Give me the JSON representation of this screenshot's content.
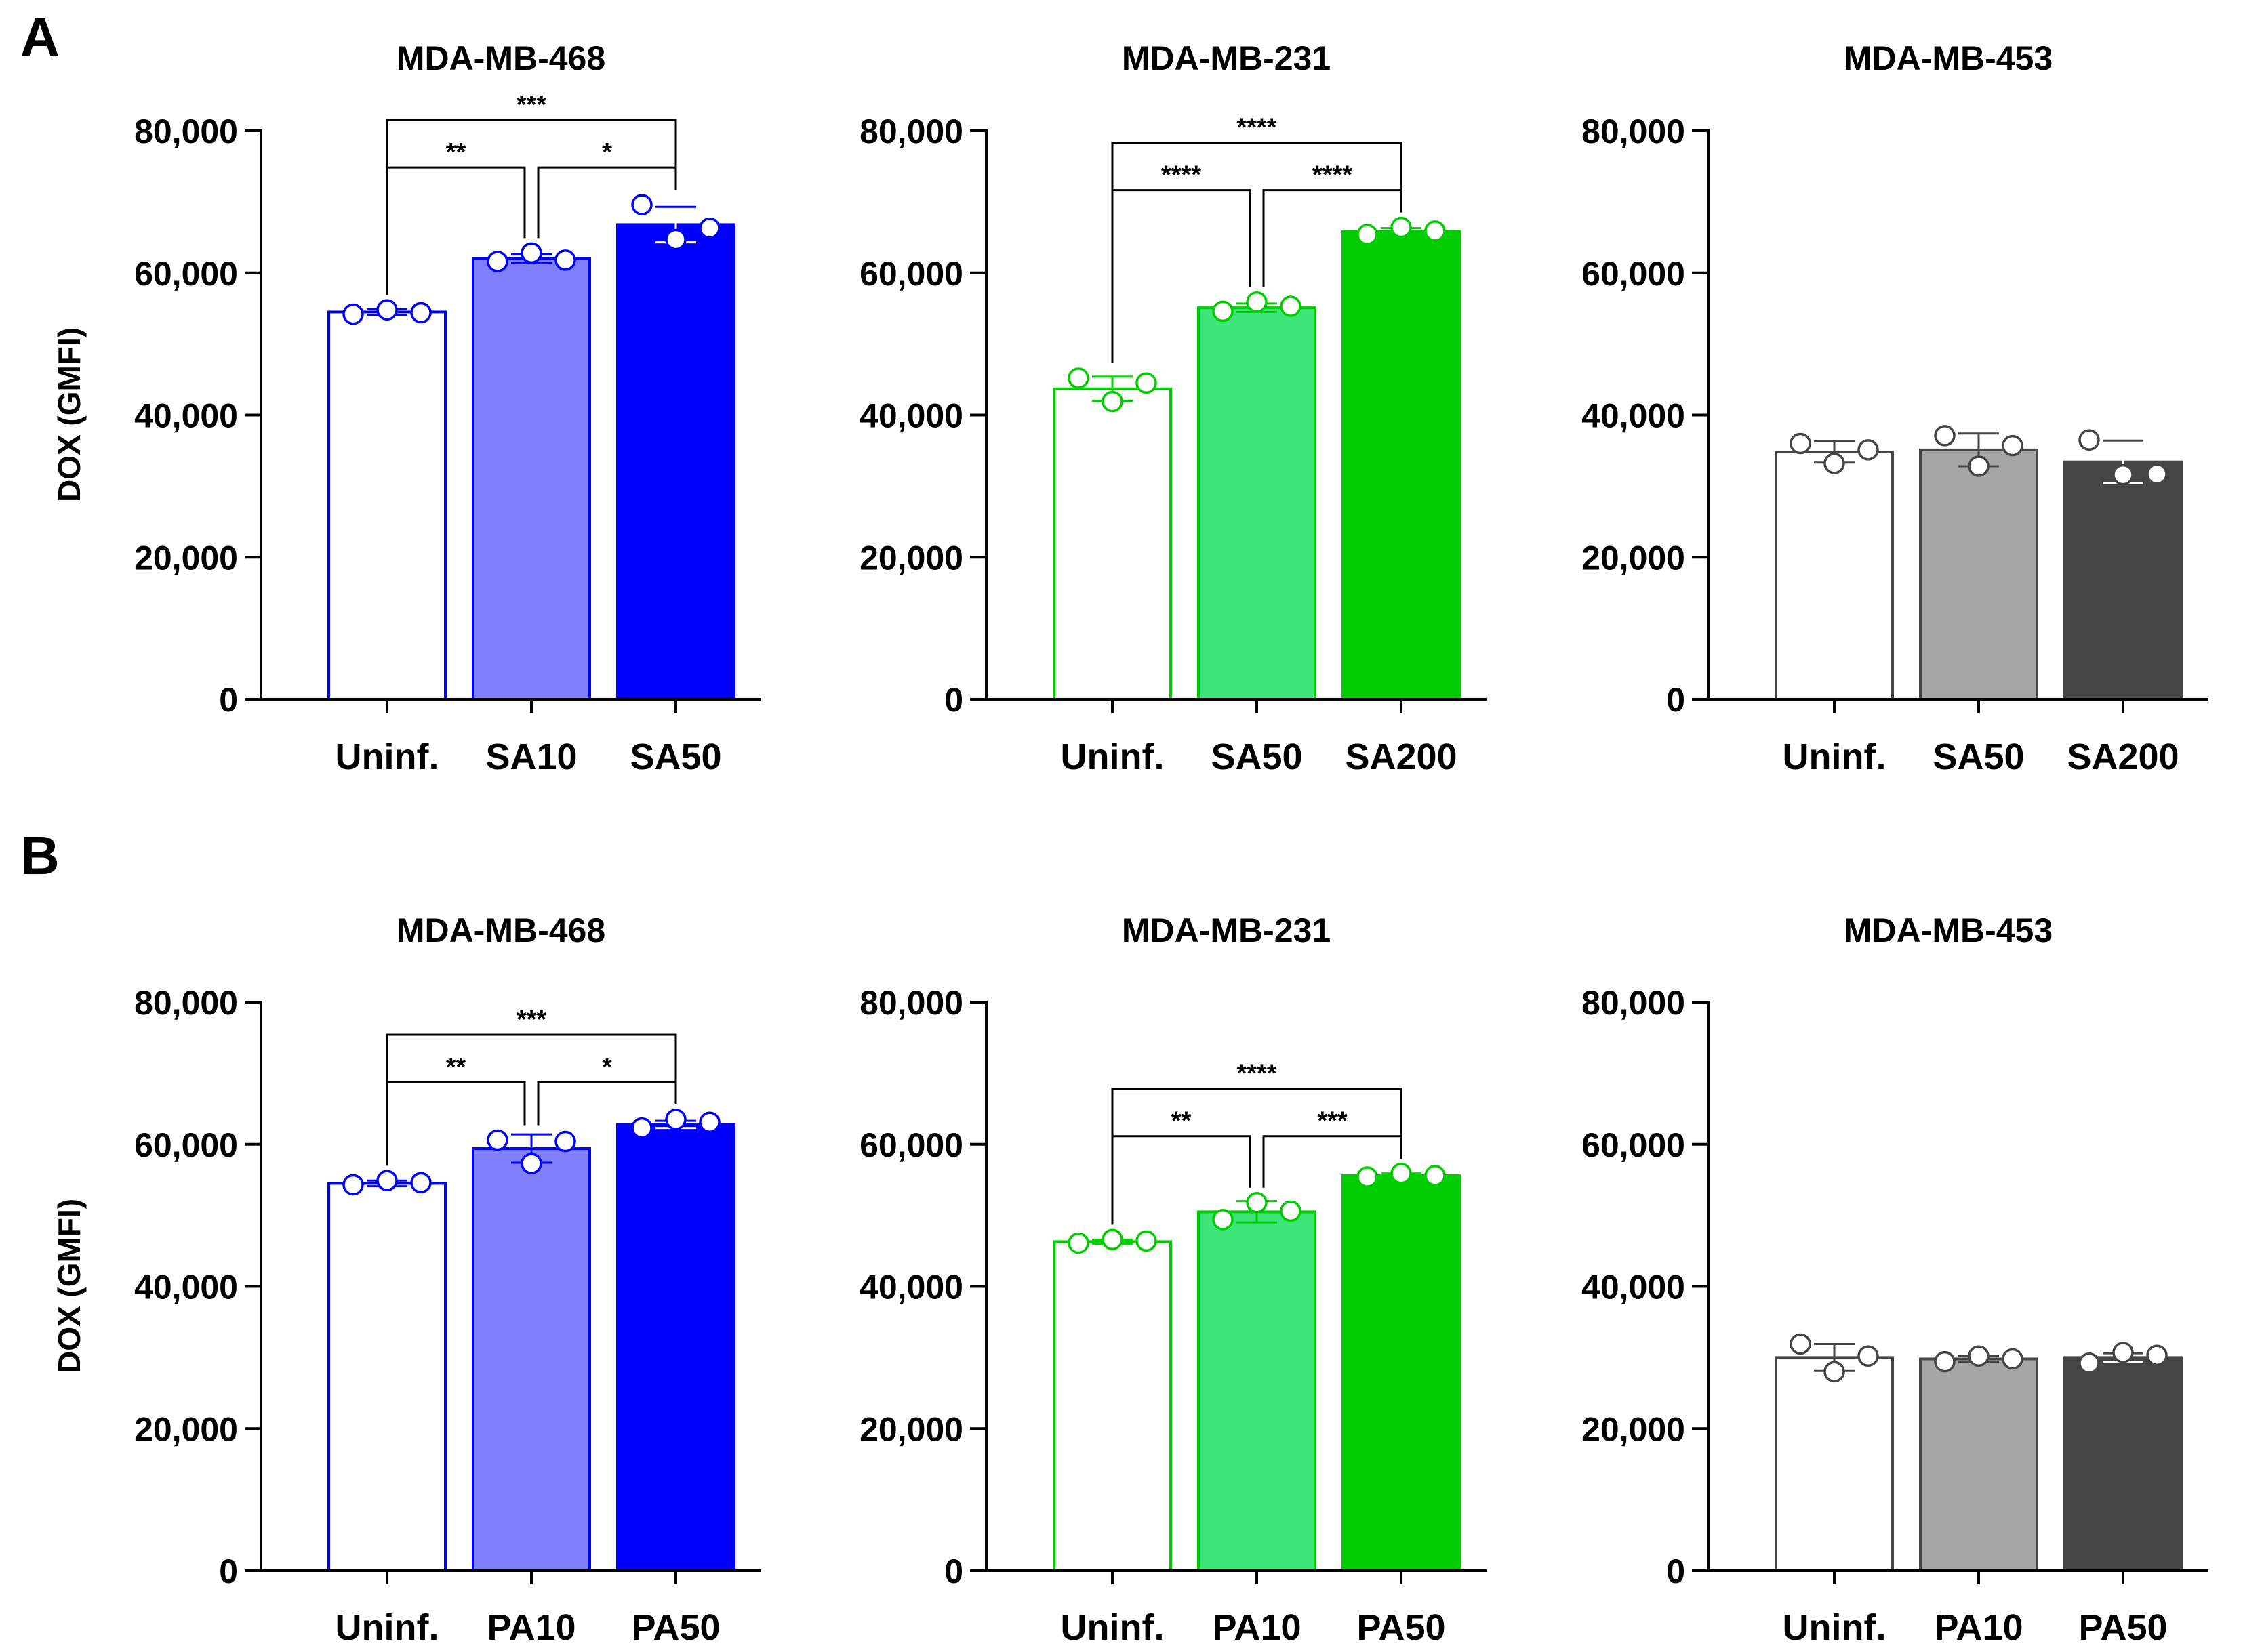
{
  "panels": [
    {
      "letter": "A"
    },
    {
      "letter": "B"
    }
  ],
  "chart_data": [
    {
      "type": "bar",
      "panel": "A",
      "title": "MDA-MB-468",
      "ylabel": "DOX (GMFI)",
      "ylim": [
        0,
        80000
      ],
      "yticks": [
        0,
        20000,
        40000,
        60000,
        80000
      ],
      "ytick_labels": [
        "0",
        "20,000",
        "40,000",
        "60,000",
        "80,000"
      ],
      "categories": [
        "Uninf.",
        "SA10",
        "SA50"
      ],
      "values": [
        54500,
        62000,
        66800
      ],
      "errors": [
        400,
        600,
        2500
      ],
      "points": [
        [
          54200,
          54800,
          54400
        ],
        [
          61600,
          62800,
          61800
        ],
        [
          69600,
          64700,
          66300
        ]
      ],
      "bar_fill": [
        "#FFFFFF",
        "#8080FF",
        "#0000FF"
      ],
      "bar_edge": [
        "#0000FF",
        "#0000FF",
        "#0000FF"
      ],
      "point_color": "#0000FF",
      "significance": [
        {
          "from": 0,
          "to": 1,
          "label": "**"
        },
        {
          "from": 1,
          "to": 2,
          "label": "*"
        },
        {
          "from": 0,
          "to": 2,
          "label": "***"
        }
      ]
    },
    {
      "type": "bar",
      "panel": "A",
      "title": "MDA-MB-231",
      "ylabel": "",
      "ylim": [
        0,
        80000
      ],
      "yticks": [
        0,
        20000,
        40000,
        60000,
        80000
      ],
      "ytick_labels": [
        "0",
        "20,000",
        "40,000",
        "60,000",
        "80,000"
      ],
      "categories": [
        "Uninf.",
        "SA50",
        "SA200"
      ],
      "values": [
        43700,
        55100,
        65800
      ],
      "errors": [
        1700,
        600,
        500
      ],
      "points": [
        [
          45200,
          41900,
          44500
        ],
        [
          54600,
          55900,
          55300
        ],
        [
          65400,
          66400,
          65900
        ]
      ],
      "bar_fill": [
        "#FFFFFF",
        "#3EE67A",
        "#00CC00"
      ],
      "bar_edge": [
        "#00CC00",
        "#00CC00",
        "#00CC00"
      ],
      "point_color": "#00CC00",
      "significance": [
        {
          "from": 0,
          "to": 1,
          "label": "****"
        },
        {
          "from": 1,
          "to": 2,
          "label": "****"
        },
        {
          "from": 0,
          "to": 2,
          "label": "****"
        }
      ]
    },
    {
      "type": "bar",
      "panel": "A",
      "title": "MDA-MB-453",
      "ylabel": "",
      "ylim": [
        0,
        80000
      ],
      "yticks": [
        0,
        20000,
        40000,
        60000,
        80000
      ],
      "ytick_labels": [
        "0",
        "20,000",
        "40,000",
        "60,000",
        "80,000"
      ],
      "categories": [
        "Uninf.",
        "SA50",
        "SA200"
      ],
      "values": [
        34800,
        35100,
        33400
      ],
      "errors": [
        1500,
        2300,
        3000
      ],
      "points": [
        [
          36000,
          33200,
          35100
        ],
        [
          37100,
          32800,
          35700
        ],
        [
          36500,
          31600,
          31700
        ]
      ],
      "bar_fill": [
        "#FFFFFF",
        "#A6A6A6",
        "#454545"
      ],
      "bar_edge": [
        "#454545",
        "#454545",
        "#454545"
      ],
      "point_color": "#454545",
      "significance": []
    },
    {
      "type": "bar",
      "panel": "B",
      "title": "MDA-MB-468",
      "ylabel": "DOX (GMFI)",
      "ylim": [
        0,
        80000
      ],
      "yticks": [
        0,
        20000,
        40000,
        60000,
        80000
      ],
      "ytick_labels": [
        "0",
        "20,000",
        "40,000",
        "60,000",
        "80,000"
      ],
      "categories": [
        "Uninf.",
        "PA10",
        "PA50"
      ],
      "values": [
        54500,
        59400,
        62800
      ],
      "errors": [
        400,
        2000,
        500
      ],
      "points": [
        [
          54300,
          54900,
          54600
        ],
        [
          60600,
          57300,
          60400
        ],
        [
          62300,
          63500,
          63100
        ]
      ],
      "bar_fill": [
        "#FFFFFF",
        "#8080FF",
        "#0000FF"
      ],
      "bar_edge": [
        "#0000FF",
        "#0000FF",
        "#0000FF"
      ],
      "point_color": "#0000FF",
      "significance": [
        {
          "from": 0,
          "to": 1,
          "label": "**"
        },
        {
          "from": 1,
          "to": 2,
          "label": "*"
        },
        {
          "from": 0,
          "to": 2,
          "label": "***"
        }
      ]
    },
    {
      "type": "bar",
      "panel": "B",
      "title": "MDA-MB-231",
      "ylabel": "",
      "ylim": [
        0,
        80000
      ],
      "yticks": [
        0,
        20000,
        40000,
        60000,
        80000
      ],
      "ytick_labels": [
        "0",
        "20,000",
        "40,000",
        "60,000",
        "80,000"
      ],
      "categories": [
        "Uninf.",
        "PA10",
        "PA50"
      ],
      "values": [
        46300,
        50500,
        55600
      ],
      "errors": [
        300,
        1500,
        300
      ],
      "points": [
        [
          46100,
          46600,
          46400
        ],
        [
          49400,
          51800,
          50600
        ],
        [
          55400,
          55900,
          55600
        ]
      ],
      "bar_fill": [
        "#FFFFFF",
        "#3EE67A",
        "#00CC00"
      ],
      "bar_edge": [
        "#00CC00",
        "#00CC00",
        "#00CC00"
      ],
      "point_color": "#00CC00",
      "significance": [
        {
          "from": 0,
          "to": 1,
          "label": "**"
        },
        {
          "from": 1,
          "to": 2,
          "label": "***"
        },
        {
          "from": 0,
          "to": 2,
          "label": "****"
        }
      ]
    },
    {
      "type": "bar",
      "panel": "B",
      "title": "MDA-MB-453",
      "ylabel": "",
      "ylim": [
        0,
        80000
      ],
      "yticks": [
        0,
        20000,
        40000,
        60000,
        80000
      ],
      "ytick_labels": [
        "0",
        "20,000",
        "40,000",
        "60,000",
        "80,000"
      ],
      "categories": [
        "Uninf.",
        "PA10",
        "PA50"
      ],
      "values": [
        30000,
        29800,
        30000
      ],
      "errors": [
        1900,
        400,
        600
      ],
      "points": [
        [
          31900,
          28000,
          30200
        ],
        [
          29400,
          30200,
          29800
        ],
        [
          29200,
          30700,
          30300
        ]
      ],
      "bar_fill": [
        "#FFFFFF",
        "#A6A6A6",
        "#454545"
      ],
      "bar_edge": [
        "#454545",
        "#454545",
        "#454545"
      ],
      "point_color": "#454545",
      "significance": []
    }
  ]
}
